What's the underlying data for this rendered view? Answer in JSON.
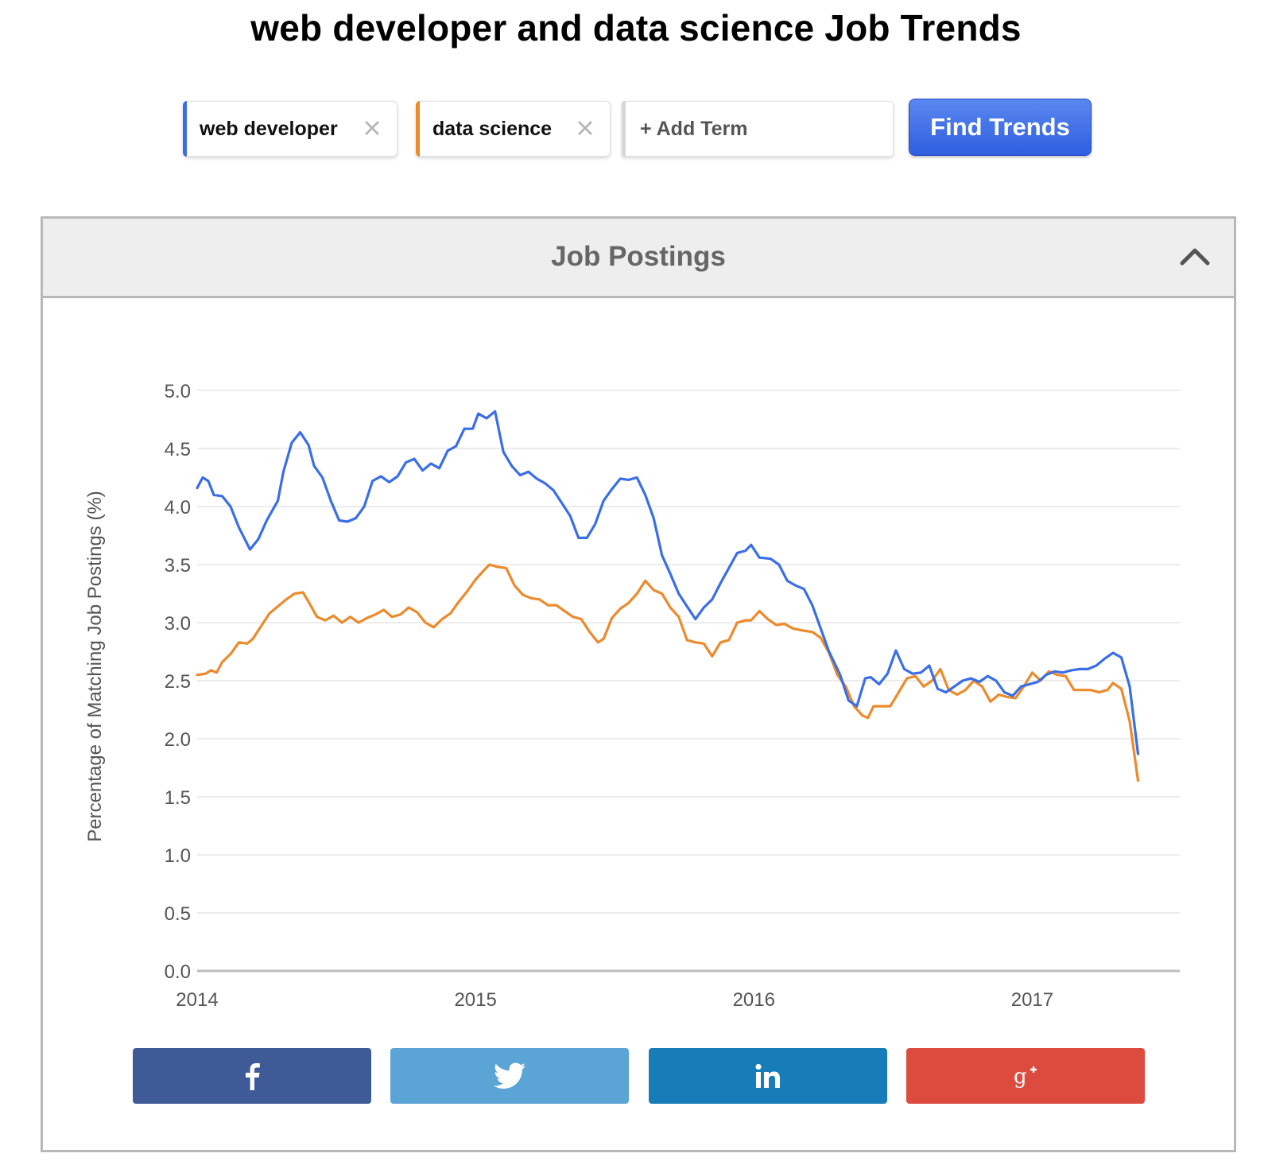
{
  "page": {
    "title": "web developer and data science Job Trends"
  },
  "terms": [
    {
      "label": "web developer",
      "color": "#3a6ee8"
    },
    {
      "label": "data science",
      "color": "#ec8a2c"
    }
  ],
  "add_term": {
    "placeholder": "+ Add Term"
  },
  "find_button": {
    "label": "Find Trends"
  },
  "panel": {
    "title": "Job Postings"
  },
  "share": [
    {
      "icon": "facebook-icon",
      "color": "#3e5b98"
    },
    {
      "icon": "twitter-icon",
      "color": "#5ba4d6"
    },
    {
      "icon": "linkedin-icon",
      "color": "#167db8"
    },
    {
      "icon": "google-plus-icon",
      "color": "#dd4b3e"
    }
  ],
  "chart_data": {
    "type": "line",
    "title": "",
    "xlabel": "",
    "ylabel": "Percentage of Matching Job Postings (%)",
    "ylim": [
      0,
      5
    ],
    "xlim": [
      2014.0,
      2017.53
    ],
    "y_ticks": [
      "0.0",
      "0.5",
      "1.0",
      "1.5",
      "2.0",
      "2.5",
      "3.0",
      "3.5",
      "4.0",
      "4.5",
      "5.0"
    ],
    "x_ticks": [
      "2014",
      "2015",
      "2016",
      "2017"
    ],
    "grid": true,
    "legend": "none",
    "series": [
      {
        "name": "web developer",
        "color": "#3a6ee8",
        "points": [
          [
            2014.0,
            4.16
          ],
          [
            2014.02,
            4.25
          ],
          [
            2014.04,
            4.22
          ],
          [
            2014.06,
            4.1
          ],
          [
            2014.09,
            4.09
          ],
          [
            2014.12,
            4.0
          ],
          [
            2014.15,
            3.82
          ],
          [
            2014.19,
            3.63
          ],
          [
            2014.22,
            3.72
          ],
          [
            2014.25,
            3.88
          ],
          [
            2014.29,
            4.05
          ],
          [
            2014.31,
            4.3
          ],
          [
            2014.34,
            4.55
          ],
          [
            2014.37,
            4.64
          ],
          [
            2014.4,
            4.53
          ],
          [
            2014.42,
            4.35
          ],
          [
            2014.45,
            4.25
          ],
          [
            2014.48,
            4.05
          ],
          [
            2014.51,
            3.88
          ],
          [
            2014.54,
            3.87
          ],
          [
            2014.57,
            3.9
          ],
          [
            2014.6,
            4.0
          ],
          [
            2014.63,
            4.22
          ],
          [
            2014.66,
            4.26
          ],
          [
            2014.69,
            4.21
          ],
          [
            2014.72,
            4.26
          ],
          [
            2014.75,
            4.38
          ],
          [
            2014.78,
            4.41
          ],
          [
            2014.81,
            4.31
          ],
          [
            2014.84,
            4.37
          ],
          [
            2014.87,
            4.33
          ],
          [
            2014.9,
            4.48
          ],
          [
            2014.93,
            4.52
          ],
          [
            2014.96,
            4.67
          ],
          [
            2014.99,
            4.67
          ],
          [
            2015.01,
            4.8
          ],
          [
            2015.04,
            4.76
          ],
          [
            2015.07,
            4.82
          ],
          [
            2015.1,
            4.47
          ],
          [
            2015.13,
            4.35
          ],
          [
            2015.16,
            4.27
          ],
          [
            2015.19,
            4.3
          ],
          [
            2015.22,
            4.24
          ],
          [
            2015.25,
            4.2
          ],
          [
            2015.28,
            4.14
          ],
          [
            2015.31,
            4.03
          ],
          [
            2015.34,
            3.92
          ],
          [
            2015.37,
            3.73
          ],
          [
            2015.4,
            3.73
          ],
          [
            2015.43,
            3.85
          ],
          [
            2015.46,
            4.05
          ],
          [
            2015.49,
            4.15
          ],
          [
            2015.52,
            4.24
          ],
          [
            2015.55,
            4.23
          ],
          [
            2015.58,
            4.25
          ],
          [
            2015.61,
            4.1
          ],
          [
            2015.64,
            3.9
          ],
          [
            2015.67,
            3.58
          ],
          [
            2015.7,
            3.42
          ],
          [
            2015.73,
            3.25
          ],
          [
            2015.76,
            3.14
          ],
          [
            2015.79,
            3.03
          ],
          [
            2015.82,
            3.13
          ],
          [
            2015.85,
            3.2
          ],
          [
            2015.88,
            3.34
          ],
          [
            2015.91,
            3.47
          ],
          [
            2015.94,
            3.6
          ],
          [
            2015.97,
            3.62
          ],
          [
            2015.99,
            3.67
          ],
          [
            2016.02,
            3.56
          ],
          [
            2016.06,
            3.55
          ],
          [
            2016.09,
            3.5
          ],
          [
            2016.12,
            3.36
          ],
          [
            2016.15,
            3.32
          ],
          [
            2016.18,
            3.29
          ],
          [
            2016.21,
            3.15
          ],
          [
            2016.24,
            2.95
          ],
          [
            2016.27,
            2.75
          ],
          [
            2016.31,
            2.55
          ],
          [
            2016.34,
            2.33
          ],
          [
            2016.37,
            2.28
          ],
          [
            2016.4,
            2.52
          ],
          [
            2016.42,
            2.53
          ],
          [
            2016.45,
            2.47
          ],
          [
            2016.48,
            2.56
          ],
          [
            2016.51,
            2.76
          ],
          [
            2016.54,
            2.6
          ],
          [
            2016.57,
            2.56
          ],
          [
            2016.6,
            2.57
          ],
          [
            2016.63,
            2.63
          ],
          [
            2016.66,
            2.43
          ],
          [
            2016.69,
            2.4
          ],
          [
            2016.72,
            2.45
          ],
          [
            2016.75,
            2.5
          ],
          [
            2016.78,
            2.52
          ],
          [
            2016.81,
            2.49
          ],
          [
            2016.84,
            2.54
          ],
          [
            2016.87,
            2.5
          ],
          [
            2016.9,
            2.4
          ],
          [
            2016.93,
            2.37
          ],
          [
            2016.96,
            2.45
          ],
          [
            2016.99,
            2.47
          ],
          [
            2017.02,
            2.49
          ],
          [
            2017.05,
            2.55
          ],
          [
            2017.08,
            2.58
          ],
          [
            2017.11,
            2.57
          ],
          [
            2017.14,
            2.59
          ],
          [
            2017.17,
            2.6
          ],
          [
            2017.2,
            2.6
          ],
          [
            2017.23,
            2.63
          ],
          [
            2017.26,
            2.69
          ],
          [
            2017.29,
            2.74
          ],
          [
            2017.32,
            2.7
          ],
          [
            2017.35,
            2.45
          ],
          [
            2017.38,
            1.87
          ]
        ]
      },
      {
        "name": "data science",
        "color": "#ec8a2c",
        "points": [
          [
            2014.0,
            2.55
          ],
          [
            2014.03,
            2.56
          ],
          [
            2014.05,
            2.59
          ],
          [
            2014.07,
            2.57
          ],
          [
            2014.09,
            2.66
          ],
          [
            2014.12,
            2.73
          ],
          [
            2014.15,
            2.83
          ],
          [
            2014.18,
            2.82
          ],
          [
            2014.2,
            2.86
          ],
          [
            2014.23,
            2.97
          ],
          [
            2014.26,
            3.08
          ],
          [
            2014.29,
            3.14
          ],
          [
            2014.32,
            3.2
          ],
          [
            2014.35,
            3.25
          ],
          [
            2014.38,
            3.26
          ],
          [
            2014.4,
            3.18
          ],
          [
            2014.43,
            3.05
          ],
          [
            2014.46,
            3.02
          ],
          [
            2014.49,
            3.06
          ],
          [
            2014.52,
            3.0
          ],
          [
            2014.55,
            3.05
          ],
          [
            2014.58,
            3.0
          ],
          [
            2014.61,
            3.04
          ],
          [
            2014.64,
            3.07
          ],
          [
            2014.67,
            3.11
          ],
          [
            2014.7,
            3.05
          ],
          [
            2014.73,
            3.07
          ],
          [
            2014.76,
            3.13
          ],
          [
            2014.79,
            3.09
          ],
          [
            2014.82,
            3.0
          ],
          [
            2014.85,
            2.96
          ],
          [
            2014.88,
            3.03
          ],
          [
            2014.91,
            3.08
          ],
          [
            2014.94,
            3.18
          ],
          [
            2014.97,
            3.27
          ],
          [
            2015.0,
            3.37
          ],
          [
            2015.03,
            3.45
          ],
          [
            2015.05,
            3.5
          ],
          [
            2015.08,
            3.48
          ],
          [
            2015.11,
            3.47
          ],
          [
            2015.14,
            3.32
          ],
          [
            2015.17,
            3.24
          ],
          [
            2015.2,
            3.21
          ],
          [
            2015.23,
            3.2
          ],
          [
            2015.26,
            3.15
          ],
          [
            2015.29,
            3.15
          ],
          [
            2015.32,
            3.1
          ],
          [
            2015.35,
            3.05
          ],
          [
            2015.38,
            3.03
          ],
          [
            2015.41,
            2.92
          ],
          [
            2015.44,
            2.83
          ],
          [
            2015.46,
            2.86
          ],
          [
            2015.49,
            3.04
          ],
          [
            2015.52,
            3.12
          ],
          [
            2015.55,
            3.17
          ],
          [
            2015.58,
            3.25
          ],
          [
            2015.61,
            3.36
          ],
          [
            2015.64,
            3.28
          ],
          [
            2015.67,
            3.25
          ],
          [
            2015.7,
            3.13
          ],
          [
            2015.73,
            3.05
          ],
          [
            2015.76,
            2.85
          ],
          [
            2015.79,
            2.83
          ],
          [
            2015.82,
            2.82
          ],
          [
            2015.85,
            2.71
          ],
          [
            2015.88,
            2.83
          ],
          [
            2015.91,
            2.85
          ],
          [
            2015.94,
            3.0
          ],
          [
            2015.97,
            3.02
          ],
          [
            2015.99,
            3.02
          ],
          [
            2016.02,
            3.1
          ],
          [
            2016.05,
            3.03
          ],
          [
            2016.08,
            2.98
          ],
          [
            2016.11,
            2.99
          ],
          [
            2016.14,
            2.95
          ],
          [
            2016.18,
            2.93
          ],
          [
            2016.21,
            2.92
          ],
          [
            2016.24,
            2.87
          ],
          [
            2016.27,
            2.74
          ],
          [
            2016.3,
            2.55
          ],
          [
            2016.33,
            2.45
          ],
          [
            2016.36,
            2.28
          ],
          [
            2016.39,
            2.2
          ],
          [
            2016.41,
            2.18
          ],
          [
            2016.43,
            2.28
          ],
          [
            2016.46,
            2.28
          ],
          [
            2016.49,
            2.28
          ],
          [
            2016.52,
            2.4
          ],
          [
            2016.55,
            2.52
          ],
          [
            2016.58,
            2.54
          ],
          [
            2016.61,
            2.45
          ],
          [
            2016.64,
            2.5
          ],
          [
            2016.67,
            2.6
          ],
          [
            2016.7,
            2.42
          ],
          [
            2016.73,
            2.38
          ],
          [
            2016.76,
            2.42
          ],
          [
            2016.79,
            2.5
          ],
          [
            2016.82,
            2.45
          ],
          [
            2016.85,
            2.32
          ],
          [
            2016.88,
            2.38
          ],
          [
            2016.91,
            2.36
          ],
          [
            2016.94,
            2.35
          ],
          [
            2016.97,
            2.45
          ],
          [
            2017.0,
            2.57
          ],
          [
            2017.03,
            2.5
          ],
          [
            2017.06,
            2.58
          ],
          [
            2017.09,
            2.55
          ],
          [
            2017.12,
            2.54
          ],
          [
            2017.15,
            2.42
          ],
          [
            2017.18,
            2.42
          ],
          [
            2017.21,
            2.42
          ],
          [
            2017.24,
            2.4
          ],
          [
            2017.27,
            2.42
          ],
          [
            2017.29,
            2.48
          ],
          [
            2017.32,
            2.43
          ],
          [
            2017.35,
            2.15
          ],
          [
            2017.38,
            1.64
          ]
        ]
      }
    ]
  }
}
